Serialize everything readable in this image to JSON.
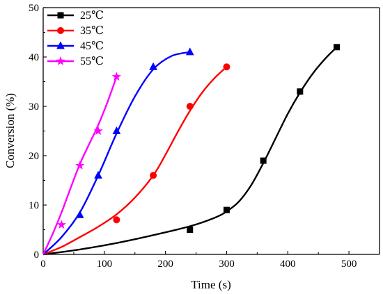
{
  "chart_data": {
    "type": "line",
    "xlabel": "Time (s)",
    "ylabel": "Conversion (%)",
    "xlim": [
      0,
      550
    ],
    "ylim": [
      0,
      50
    ],
    "xticks": [
      0,
      100,
      200,
      300,
      400,
      500
    ],
    "yticks": [
      0,
      10,
      20,
      30,
      40,
      50
    ],
    "xtick_labels": [
      "0",
      "100",
      "200",
      "300",
      "400",
      "500"
    ],
    "ytick_labels": [
      "0",
      "10",
      "20",
      "30",
      "40",
      "50"
    ],
    "legend_position": "top-left",
    "grid": false,
    "series": [
      {
        "name": "25℃",
        "color": "#000000",
        "marker": "square",
        "x": [
          0,
          240,
          300,
          360,
          420,
          480
        ],
        "y": [
          0,
          5,
          9,
          19,
          33,
          42
        ],
        "fit_x": [
          0,
          60,
          120,
          180,
          240,
          280,
          300,
          320,
          340,
          360,
          380,
          400,
          420,
          440,
          460,
          480
        ],
        "fit_y": [
          0,
          1,
          2.3,
          3.9,
          5.7,
          7.4,
          8.7,
          10.7,
          14,
          18.5,
          23.5,
          28.5,
          32.8,
          36.5,
          39.5,
          42
        ]
      },
      {
        "name": "35℃",
        "color": "#ff0000",
        "marker": "circle",
        "x": [
          0,
          120,
          180,
          240,
          300
        ],
        "y": [
          0,
          7,
          16,
          30,
          38
        ],
        "fit_x": [
          0,
          30,
          60,
          90,
          120,
          150,
          180,
          200,
          220,
          240,
          260,
          280,
          300
        ],
        "fit_y": [
          0,
          1.5,
          3.5,
          5.6,
          8.1,
          11.5,
          16,
          20.2,
          24.8,
          29.1,
          32.8,
          35.7,
          38
        ]
      },
      {
        "name": "45℃",
        "color": "#0000ff",
        "marker": "triangle",
        "x": [
          0,
          60,
          90,
          120,
          180,
          240
        ],
        "y": [
          0,
          8,
          16,
          25,
          38,
          41
        ],
        "fit_x": [
          0,
          30,
          60,
          90,
          120,
          150,
          180,
          210,
          240
        ],
        "fit_y": [
          0,
          3.5,
          8.5,
          16,
          24.5,
          32,
          37.5,
          40.2,
          41
        ]
      },
      {
        "name": "55℃",
        "color": "#ff00ff",
        "marker": "star",
        "x": [
          0,
          30,
          60,
          90,
          120
        ],
        "y": [
          0,
          6,
          18,
          25,
          36
        ],
        "fit_x": [
          0,
          15,
          30,
          45,
          60,
          75,
          90,
          105,
          120
        ],
        "fit_y": [
          0,
          4,
          8.5,
          13.5,
          18.3,
          22.3,
          26.2,
          30.8,
          36
        ]
      }
    ]
  }
}
